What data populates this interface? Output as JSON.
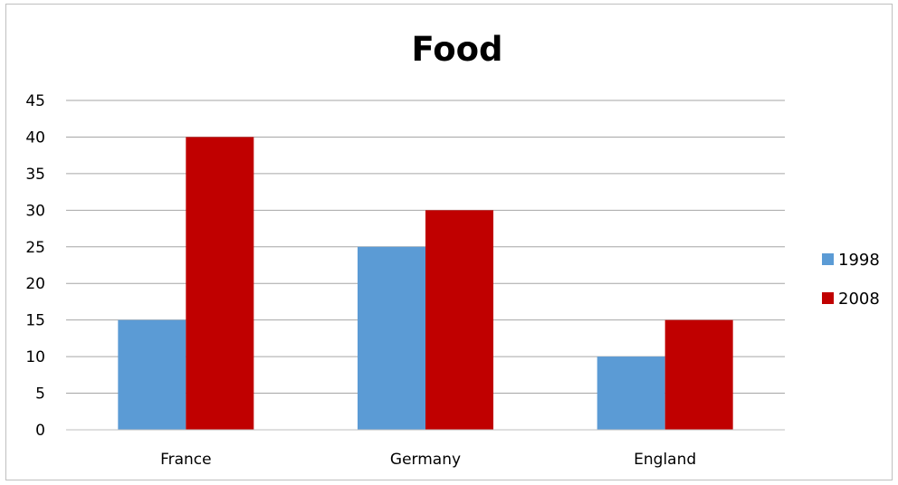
{
  "chart_data": {
    "type": "bar",
    "title": "Food",
    "categories": [
      "France",
      "Germany",
      "England"
    ],
    "series": [
      {
        "name": "1998",
        "values": [
          15,
          25,
          10
        ],
        "color": "#5b9bd5"
      },
      {
        "name": "2008",
        "values": [
          40,
          30,
          15
        ],
        "color": "#c00000"
      }
    ],
    "ylim": [
      0,
      45
    ],
    "yticks": [
      0,
      5,
      10,
      15,
      20,
      25,
      30,
      35,
      40,
      45
    ],
    "grid": true,
    "legend_position": "right"
  }
}
